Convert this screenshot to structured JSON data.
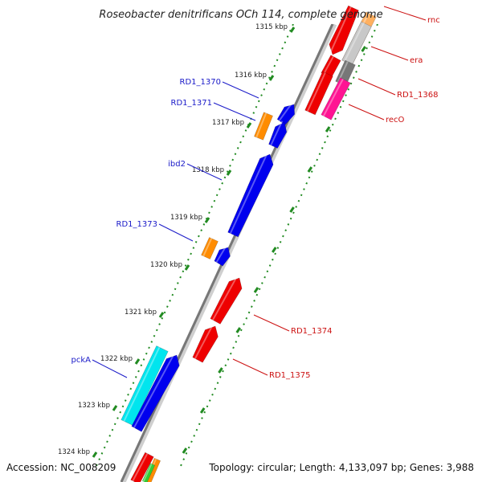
{
  "title": "Roseobacter denitrificans OCh 114, complete genome",
  "footer": {
    "accession": "Accession: NC_008209",
    "topology": "Topology: circular; Length: 4,133,097 bp; Genes: 3,988"
  },
  "ticks": [
    "1315 kbp",
    "1316 kbp",
    "1317 kbp",
    "1318 kbp",
    "1319 kbp",
    "1320 kbp",
    "1321 kbp",
    "1322 kbp",
    "1323 kbp",
    "1324 kbp"
  ],
  "genes_left": [
    {
      "label": "RD1_1370",
      "color": "#0000ee"
    },
    {
      "label": "RD1_1371",
      "color": "#ff8c00"
    },
    {
      "label": "ibd2",
      "color": "#0000ee"
    },
    {
      "label": "RD1_1373",
      "color": "#ff8c00"
    },
    {
      "label": "pckA",
      "color": "#00e5ee"
    }
  ],
  "genes_right": [
    {
      "label": "rnc",
      "color": "#ee0000"
    },
    {
      "label": "era",
      "color": "#c8c8c8"
    },
    {
      "label": "RD1_1368",
      "color": "#777777"
    },
    {
      "label": "recO",
      "color": "#ff1493"
    },
    {
      "label": "RD1_1374",
      "color": "#ee0000"
    },
    {
      "label": "RD1_1375",
      "color": "#ee0000"
    }
  ]
}
